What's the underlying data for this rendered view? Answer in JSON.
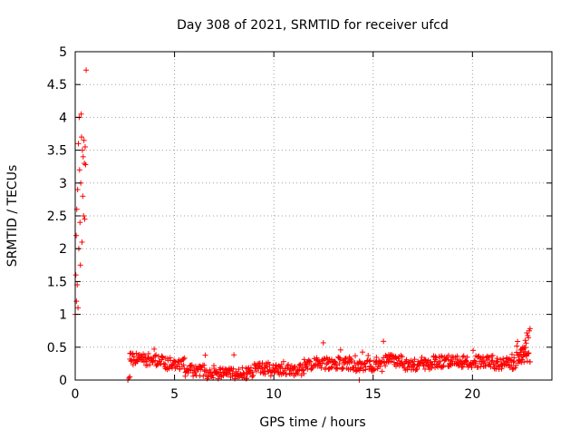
{
  "chart_data": {
    "type": "scatter",
    "title": "Day 308 of 2021, SRMTID for receiver ufcd",
    "xlabel": "GPS time / hours",
    "ylabel": "SRMTID / TECUs",
    "xlim": [
      0,
      24
    ],
    "ylim": [
      0,
      5
    ],
    "x_ticks": [
      0,
      5,
      10,
      15,
      20
    ],
    "y_ticks": [
      0,
      0.5,
      1,
      1.5,
      2,
      2.5,
      3,
      3.5,
      4,
      4.5,
      5
    ],
    "x_tick_labels": [
      "0",
      "5",
      "10",
      "15",
      "20"
    ],
    "y_tick_labels": [
      "0",
      "0.5",
      "1",
      "1.5",
      "2",
      "2.5",
      "3",
      "3.5",
      "4",
      "4.5",
      "5"
    ],
    "grid": true,
    "marker": "+",
    "marker_color": "#ff0000",
    "series": [
      {
        "name": "ufcd",
        "points": [
          [
            0.0,
            1.0
          ],
          [
            0.03,
            1.6
          ],
          [
            0.05,
            2.2
          ],
          [
            0.06,
            1.2
          ],
          [
            0.08,
            2.6
          ],
          [
            0.1,
            1.45
          ],
          [
            0.12,
            2.9
          ],
          [
            0.14,
            1.1
          ],
          [
            0.16,
            3.6
          ],
          [
            0.18,
            2.0
          ],
          [
            0.2,
            4.0
          ],
          [
            0.22,
            3.2
          ],
          [
            0.24,
            2.4
          ],
          [
            0.26,
            1.75
          ],
          [
            0.28,
            3.0
          ],
          [
            0.3,
            4.05
          ],
          [
            0.32,
            3.7
          ],
          [
            0.34,
            2.1
          ],
          [
            0.36,
            3.5
          ],
          [
            0.38,
            2.8
          ],
          [
            0.4,
            3.4
          ],
          [
            0.42,
            2.5
          ],
          [
            0.44,
            3.65
          ],
          [
            0.46,
            3.3
          ],
          [
            0.48,
            2.45
          ],
          [
            0.5,
            3.55
          ],
          [
            0.52,
            3.28
          ],
          [
            0.55,
            4.72
          ],
          [
            2.65,
            0.0
          ],
          [
            2.7,
            0.03
          ],
          [
            2.75,
            0.05
          ],
          [
            14.3,
            0.0
          ]
        ]
      }
    ]
  }
}
